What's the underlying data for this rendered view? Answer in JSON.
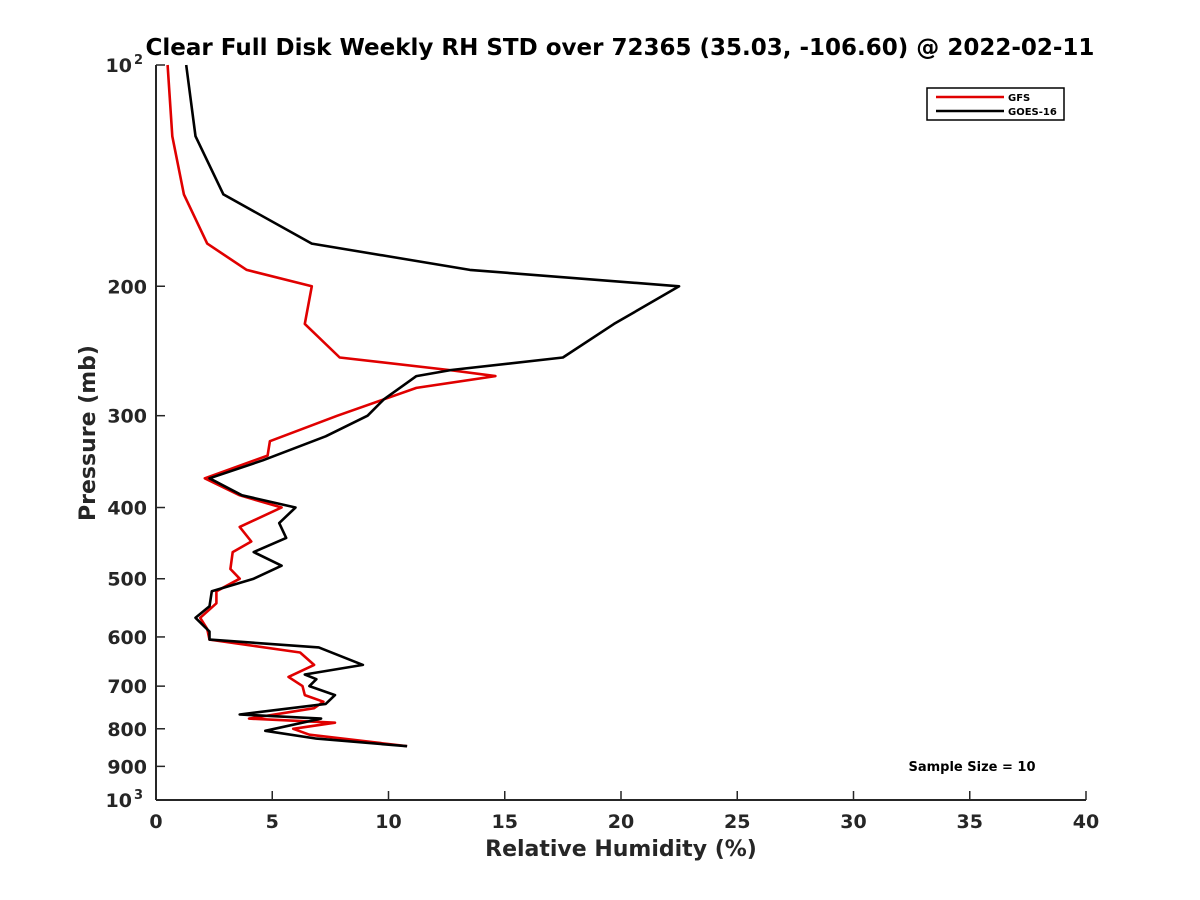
{
  "chart_data": {
    "type": "line",
    "title": "Clear Full Disk Weekly RH STD over 72365 (35.03, -106.60) @ 2022-02-11",
    "xlabel": "Relative Humidity (%)",
    "ylabel": "Pressure (mb)",
    "xlim": [
      0,
      40
    ],
    "ylim": [
      100,
      1000
    ],
    "y_scale": "log",
    "y_reversed": true,
    "x_ticks": [
      0,
      5,
      10,
      15,
      20,
      25,
      30,
      35,
      40
    ],
    "y_ticks": [
      {
        "value": 100,
        "label": "10",
        "exp": "2"
      },
      {
        "value": 200,
        "label": "200"
      },
      {
        "value": 300,
        "label": "300"
      },
      {
        "value": 400,
        "label": "400"
      },
      {
        "value": 500,
        "label": "500"
      },
      {
        "value": 600,
        "label": "600"
      },
      {
        "value": 700,
        "label": "700"
      },
      {
        "value": 800,
        "label": "800"
      },
      {
        "value": 900,
        "label": "900"
      },
      {
        "value": 1000,
        "label": "10",
        "exp": "3"
      }
    ],
    "grid": false,
    "legend_position": "top-right",
    "annotation": "Sample Size = 10",
    "series": [
      {
        "name": "GFS",
        "color": "#e00000",
        "points": [
          [
            0.5,
            100
          ],
          [
            0.7,
            125
          ],
          [
            1.2,
            150
          ],
          [
            2.2,
            175
          ],
          [
            3.9,
            190
          ],
          [
            6.7,
            200
          ],
          [
            6.4,
            225
          ],
          [
            7.9,
            250
          ],
          [
            12.6,
            260
          ],
          [
            14.6,
            265
          ],
          [
            11.2,
            275
          ],
          [
            9.8,
            285
          ],
          [
            7.8,
            300
          ],
          [
            4.9,
            325
          ],
          [
            4.8,
            340
          ],
          [
            2.1,
            365
          ],
          [
            3.6,
            385
          ],
          [
            5.4,
            400
          ],
          [
            3.6,
            425
          ],
          [
            4.1,
            445
          ],
          [
            3.3,
            460
          ],
          [
            3.2,
            485
          ],
          [
            3.6,
            500
          ],
          [
            2.6,
            520
          ],
          [
            2.6,
            540
          ],
          [
            1.9,
            565
          ],
          [
            2.2,
            585
          ],
          [
            2.3,
            605
          ],
          [
            6.2,
            630
          ],
          [
            6.8,
            655
          ],
          [
            5.7,
            680
          ],
          [
            6.3,
            700
          ],
          [
            6.4,
            720
          ],
          [
            7.2,
            735
          ],
          [
            6.8,
            750
          ],
          [
            4.0,
            775
          ],
          [
            7.7,
            785
          ],
          [
            5.9,
            800
          ],
          [
            6.6,
            815
          ],
          [
            10.8,
            845
          ]
        ]
      },
      {
        "name": "GOES-16",
        "color": "#000000",
        "points": [
          [
            1.3,
            100
          ],
          [
            1.7,
            125
          ],
          [
            2.9,
            150
          ],
          [
            6.7,
            175
          ],
          [
            13.5,
            190
          ],
          [
            22.5,
            200
          ],
          [
            19.7,
            225
          ],
          [
            17.5,
            250
          ],
          [
            12.7,
            260
          ],
          [
            11.2,
            265
          ],
          [
            9.8,
            285
          ],
          [
            9.1,
            300
          ],
          [
            7.3,
            320
          ],
          [
            4.6,
            345
          ],
          [
            2.3,
            365
          ],
          [
            3.7,
            385
          ],
          [
            6.0,
            400
          ],
          [
            5.3,
            420
          ],
          [
            5.6,
            440
          ],
          [
            4.2,
            460
          ],
          [
            5.4,
            480
          ],
          [
            4.2,
            500
          ],
          [
            2.4,
            520
          ],
          [
            2.3,
            545
          ],
          [
            1.7,
            565
          ],
          [
            2.3,
            590
          ],
          [
            2.3,
            605
          ],
          [
            7.0,
            620
          ],
          [
            8.9,
            655
          ],
          [
            6.4,
            675
          ],
          [
            6.9,
            685
          ],
          [
            6.6,
            700
          ],
          [
            7.7,
            720
          ],
          [
            7.3,
            740
          ],
          [
            3.6,
            765
          ],
          [
            7.1,
            775
          ],
          [
            4.7,
            805
          ],
          [
            6.9,
            825
          ],
          [
            10.8,
            845
          ]
        ]
      }
    ]
  }
}
